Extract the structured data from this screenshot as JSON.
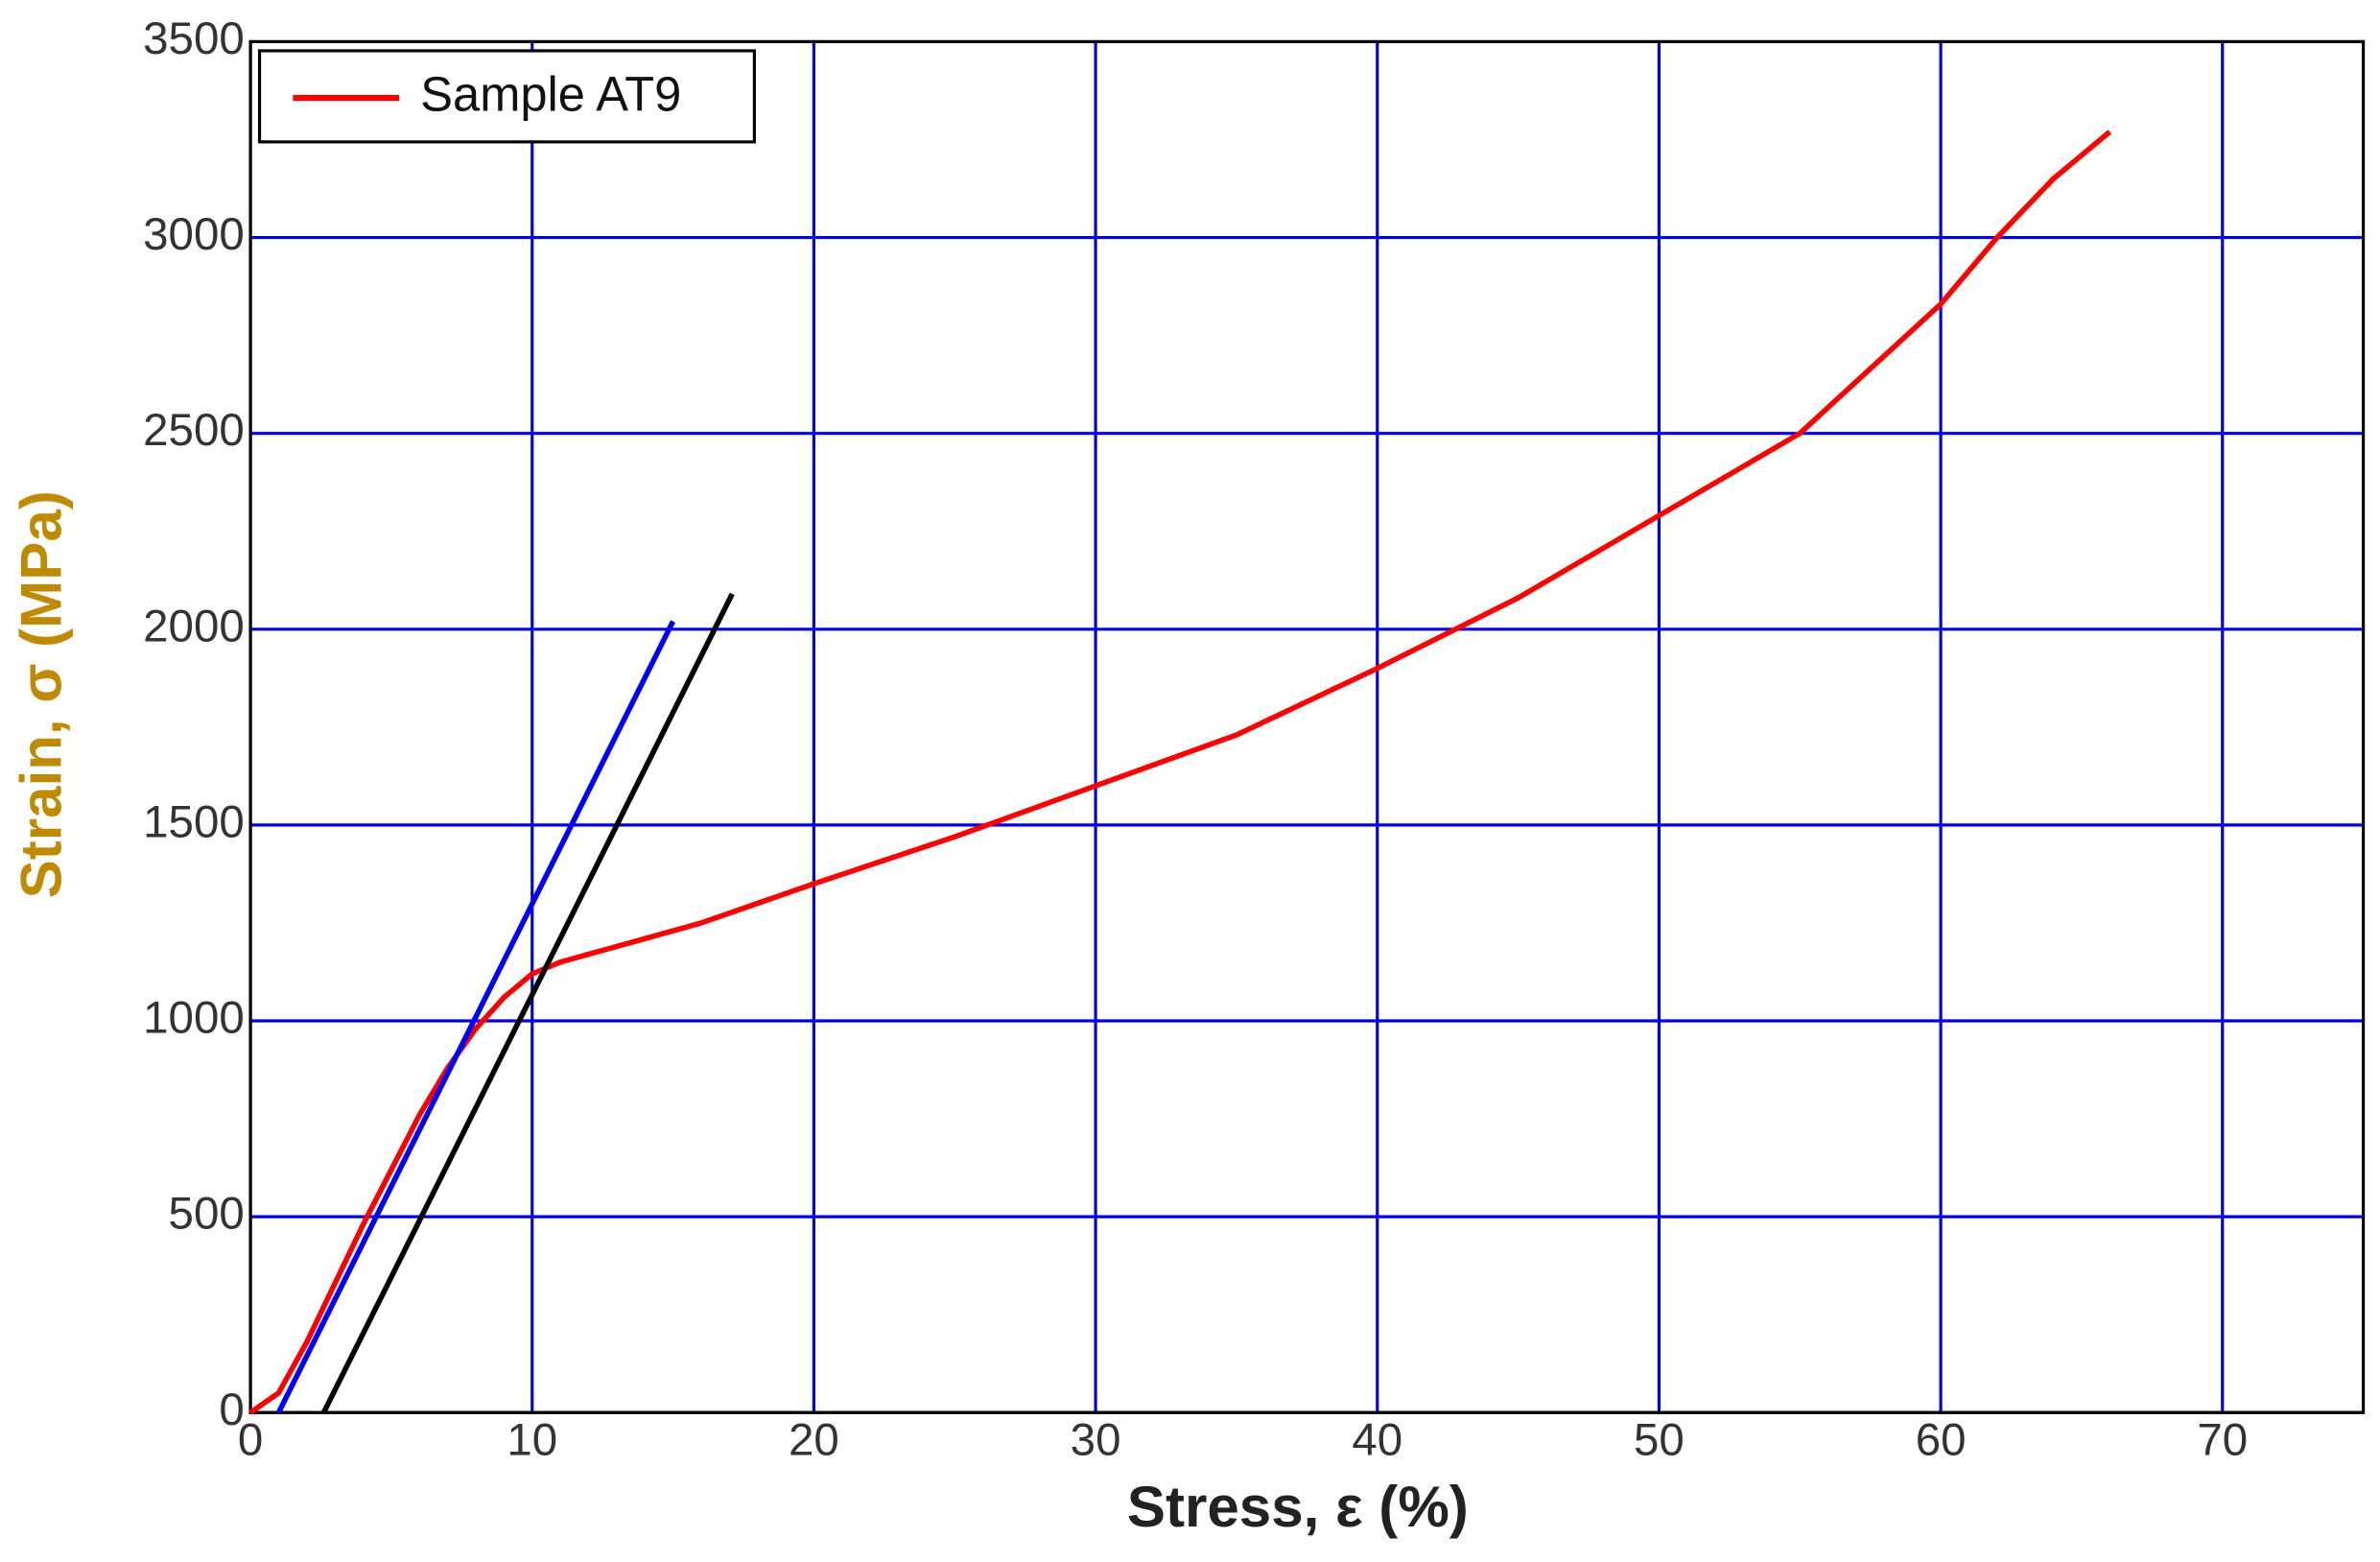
{
  "chart_data": {
    "type": "line",
    "x_label": "Stress, ε (%)",
    "y_label": "Strain, σ (MPa)",
    "xlim": [
      0,
      75
    ],
    "xticks": [
      0,
      10,
      20,
      30,
      40,
      50,
      60,
      70
    ],
    "ylim": [
      0,
      3500
    ],
    "yticks": [
      0,
      500,
      1000,
      1500,
      2000,
      2500,
      3000,
      3500
    ],
    "grid": true,
    "grid_color": "#0000dd",
    "legend": "upper left",
    "series": [
      {
        "name": "Sample AT9",
        "color": "#ff0000",
        "x": [
          0,
          1,
          2,
          3,
          4,
          5,
          6,
          7,
          8,
          9,
          10,
          11,
          12,
          14,
          16,
          18,
          20,
          25,
          30,
          35,
          40,
          45,
          50,
          55,
          60,
          62,
          64,
          66
        ],
        "values": [
          0,
          50,
          180,
          330,
          480,
          620,
          760,
          880,
          980,
          1060,
          1120,
          1150,
          1170,
          1210,
          1250,
          1300,
          1350,
          1470,
          1600,
          1730,
          1900,
          2080,
          2290,
          2500,
          2830,
          3000,
          3150,
          3270
        ]
      },
      {
        "color": "#0000ff",
        "x": [
          1,
          15
        ],
        "values": [
          0,
          2020
        ]
      },
      {
        "color": "#000000",
        "x": [
          2.6,
          17.1
        ],
        "values": [
          0,
          2090
        ]
      }
    ]
  }
}
